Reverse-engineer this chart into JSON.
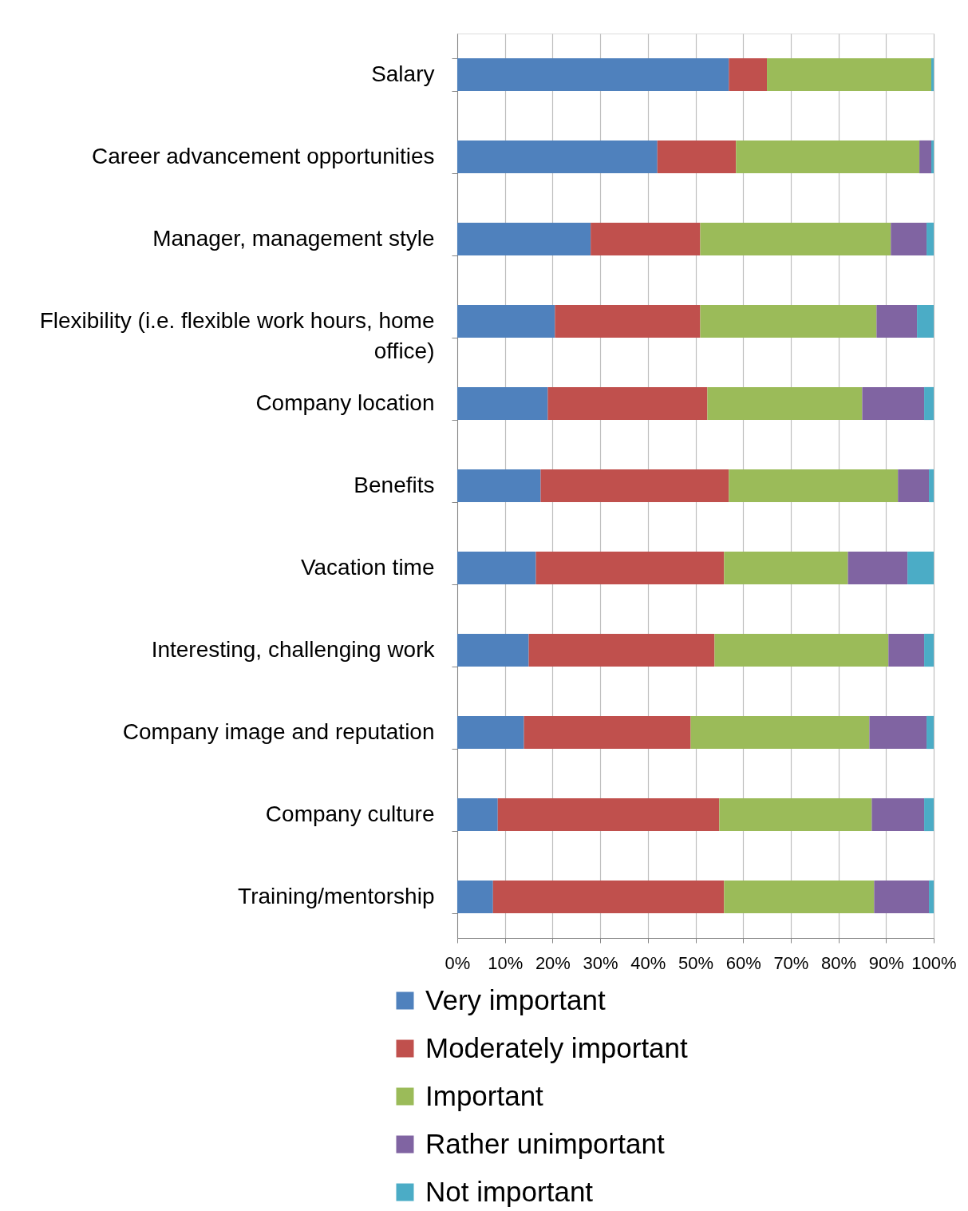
{
  "chart_data": {
    "type": "bar",
    "orientation": "horizontal",
    "stacked": true,
    "categories": [
      "Salary",
      "Career advancement opportunities",
      "Manager, management style",
      "Flexibility (i.e. flexible work hours, home office)",
      "Company location",
      "Benefits",
      "Vacation time",
      "Interesting, challenging work",
      "Company image and reputation",
      "Company culture",
      "Training/mentorship"
    ],
    "series": [
      {
        "name": "Very important",
        "color": "#4f81bd",
        "values": [
          57,
          42,
          28,
          20.5,
          19,
          17.5,
          16.5,
          15,
          14,
          8.5,
          7.5
        ]
      },
      {
        "name": "Moderately important",
        "color": "#c0504d",
        "values": [
          8,
          16.5,
          23,
          30.5,
          33.5,
          39.5,
          39.5,
          39,
          35,
          46.5,
          48.5
        ]
      },
      {
        "name": "Important",
        "color": "#9bbb59",
        "values": [
          34.5,
          38.5,
          40,
          37,
          32.5,
          35.5,
          26,
          36.5,
          37.5,
          32,
          31.5
        ]
      },
      {
        "name": "Rather unimportant",
        "color": "#8064a2",
        "values": [
          0,
          2.5,
          7.5,
          8.5,
          13,
          6.5,
          12.5,
          7.5,
          12,
          11,
          11.5
        ]
      },
      {
        "name": "Not important",
        "color": "#4bacc6",
        "values": [
          0.5,
          0.5,
          1.5,
          3.5,
          2,
          1,
          5.5,
          2,
          1.5,
          2,
          1
        ]
      }
    ],
    "xlim": [
      0,
      100
    ],
    "xticks": [
      {
        "value": 0,
        "label": "0%"
      },
      {
        "value": 10,
        "label": "10%"
      },
      {
        "value": 20,
        "label": "20%"
      },
      {
        "value": 30,
        "label": "30%"
      },
      {
        "value": 40,
        "label": "40%"
      },
      {
        "value": 50,
        "label": "50%"
      },
      {
        "value": 60,
        "label": "60%"
      },
      {
        "value": 70,
        "label": "70%"
      },
      {
        "value": 80,
        "label": "80%"
      },
      {
        "value": 90,
        "label": "90%"
      },
      {
        "value": 100,
        "label": "100%"
      }
    ],
    "grid": "x",
    "legend": "bottom"
  }
}
